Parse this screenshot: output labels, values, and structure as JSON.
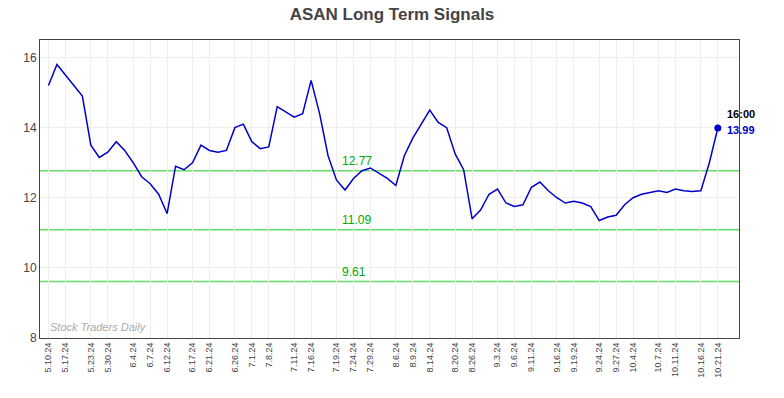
{
  "chart_data": {
    "type": "line",
    "title": "ASAN Long Term Signals",
    "categories": [
      "5.10.24",
      null,
      "5.17.24",
      null,
      null,
      "5.23.24",
      null,
      "5.30.24",
      null,
      null,
      "6.4.24",
      null,
      "6.7.24",
      null,
      "6.12.24",
      null,
      null,
      "6.17.24",
      null,
      "6.21.24",
      null,
      null,
      "6.26.24",
      null,
      "7.1.24",
      null,
      "7.8.24",
      null,
      null,
      "7.11.24",
      null,
      "7.16.24",
      null,
      null,
      "7.19.24",
      null,
      "7.24.24",
      null,
      "7.29.24",
      null,
      null,
      "8.6.24",
      null,
      "8.9.24",
      null,
      "8.14.24",
      null,
      null,
      "8.20.24",
      null,
      "8.26.24",
      null,
      null,
      "9.3.24",
      null,
      "9.6.24",
      null,
      "9.11.24",
      null,
      null,
      "9.16.24",
      null,
      "9.19.24",
      null,
      null,
      "9.24.24",
      null,
      "9.27.24",
      null,
      "10.4.24",
      null,
      null,
      "10.7.24",
      null,
      "10.11.24",
      null,
      null,
      "10.16.24",
      null,
      "10.21.24"
    ],
    "values": [
      15.2,
      15.8,
      15.5,
      15.2,
      14.9,
      13.5,
      13.15,
      13.3,
      13.6,
      13.35,
      13.0,
      12.6,
      12.4,
      12.1,
      11.55,
      12.9,
      12.8,
      13.0,
      13.5,
      13.35,
      13.3,
      13.35,
      14.0,
      14.1,
      13.6,
      13.4,
      13.45,
      14.6,
      14.45,
      14.3,
      14.4,
      15.35,
      14.4,
      13.2,
      12.5,
      12.22,
      12.55,
      12.77,
      12.85,
      12.7,
      12.55,
      12.35,
      13.2,
      13.7,
      14.1,
      14.5,
      14.15,
      14.0,
      13.25,
      12.8,
      11.4,
      11.65,
      12.1,
      12.25,
      11.85,
      11.75,
      11.8,
      12.3,
      12.45,
      12.2,
      12.0,
      11.85,
      11.9,
      11.85,
      11.75,
      11.35,
      11.45,
      11.5,
      11.8,
      12.0,
      12.1,
      12.15,
      12.2,
      12.15,
      12.25,
      12.2,
      12.18,
      12.2,
      13.0,
      13.99
    ],
    "color": "#0000cc",
    "hlines": [
      12.77,
      11.09,
      9.61
    ],
    "hline_color": "#66dd66",
    "hline_label_color": "#00aa00",
    "last_time": "16:00",
    "last_time_color": "#000000",
    "last_price": "13.99",
    "watermark": "Stock Traders Daily",
    "watermark_color": "#aaaaaa",
    "ylim": [
      8,
      16.5
    ],
    "yticks": [
      8,
      10,
      12,
      14,
      16
    ],
    "grid": true
  }
}
